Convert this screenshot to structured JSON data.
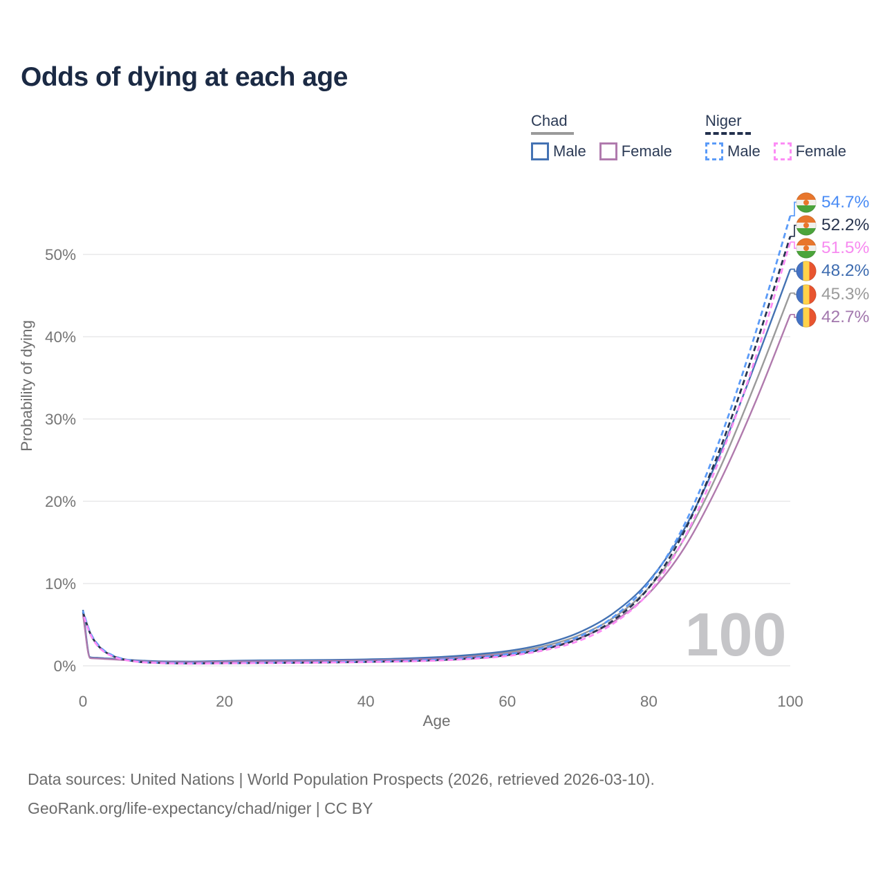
{
  "title": "Odds of dying at each age",
  "watermark": "100",
  "legend": {
    "groups": [
      {
        "name": "Chad",
        "underline_style": "solid",
        "underline_color": "#9a9a9a",
        "items": [
          {
            "label": "Male",
            "color": "#4472b3",
            "line_style": "solid"
          },
          {
            "label": "Female",
            "color": "#b07aad",
            "line_style": "solid"
          }
        ]
      },
      {
        "name": "Niger",
        "underline_style": "dashed",
        "underline_color": "#22304d",
        "items": [
          {
            "label": "Male",
            "color": "#5b9bf8",
            "line_style": "dashed"
          },
          {
            "label": "Female",
            "color": "#fc8df5",
            "line_style": "dashed"
          }
        ]
      }
    ]
  },
  "chart_data": {
    "type": "line",
    "title": "Odds of dying at each age",
    "xlabel": "Age",
    "ylabel": "Probability of dying",
    "xlim": [
      0,
      100
    ],
    "ylim_pct": [
      0,
      57
    ],
    "x_ticks": [
      0,
      20,
      40,
      60,
      80,
      100
    ],
    "x_tick_labels": [
      "0",
      "20",
      "40",
      "60",
      "80",
      "100"
    ],
    "y_ticks_pct": [
      0,
      10,
      20,
      30,
      40,
      50
    ],
    "y_tick_labels": [
      "0%",
      "10%",
      "20%",
      "30%",
      "40%",
      "50%"
    ],
    "grid": "horizontal",
    "hover_age_indicator": "100",
    "ages": [
      0,
      1,
      2,
      3,
      4,
      5,
      8,
      10,
      15,
      20,
      25,
      30,
      35,
      40,
      45,
      50,
      55,
      60,
      65,
      70,
      75,
      80,
      85,
      90,
      95,
      100
    ],
    "series": [
      {
        "id": "chad_both",
        "country": "Chad",
        "sex": "Both sexes",
        "style": "solid",
        "color": "#9a9a9a",
        "values_pct": [
          6.5,
          1.0,
          0.93,
          0.88,
          0.83,
          0.78,
          0.61,
          0.53,
          0.48,
          0.55,
          0.61,
          0.63,
          0.66,
          0.71,
          0.8,
          0.95,
          1.22,
          1.63,
          2.35,
          3.65,
          5.85,
          9.5,
          15.4,
          23.9,
          34.2,
          45.3
        ],
        "end_value_pct": 45.3,
        "end_label": "45.3%",
        "label_color": "#9a9a9a",
        "flag": "chad"
      },
      {
        "id": "chad_male",
        "country": "Chad",
        "sex": "Male",
        "style": "solid",
        "color": "#4472b3",
        "values_pct": [
          6.8,
          1.05,
          0.98,
          0.92,
          0.87,
          0.82,
          0.65,
          0.57,
          0.52,
          0.6,
          0.66,
          0.69,
          0.72,
          0.78,
          0.88,
          1.05,
          1.35,
          1.8,
          2.6,
          4.0,
          6.4,
          10.3,
          16.6,
          25.6,
          36.6,
          48.2
        ],
        "end_value_pct": 48.2,
        "end_label": "48.2%",
        "label_color": "#3e6cb0",
        "flag": "chad"
      },
      {
        "id": "chad_female",
        "country": "Chad",
        "sex": "Female",
        "style": "solid",
        "color": "#b07aad",
        "values_pct": [
          6.2,
          0.95,
          0.89,
          0.84,
          0.79,
          0.74,
          0.57,
          0.49,
          0.44,
          0.5,
          0.55,
          0.57,
          0.6,
          0.65,
          0.73,
          0.86,
          1.1,
          1.47,
          2.1,
          3.3,
          5.35,
          8.8,
          14.3,
          22.3,
          31.9,
          42.7
        ],
        "end_value_pct": 42.7,
        "end_label": "42.7%",
        "label_color": "#a277ad",
        "flag": "chad"
      },
      {
        "id": "niger_both",
        "country": "Niger",
        "sex": "Both sexes",
        "style": "dashed",
        "color": "#28344e",
        "values_pct": [
          6.5,
          4.0,
          2.6,
          1.78,
          1.28,
          0.95,
          0.48,
          0.38,
          0.29,
          0.32,
          0.35,
          0.38,
          0.42,
          0.48,
          0.56,
          0.69,
          0.91,
          1.3,
          2.0,
          3.25,
          5.55,
          9.5,
          16.3,
          26.2,
          38.6,
          52.2
        ],
        "end_value_pct": 52.2,
        "end_label": "52.2%",
        "label_color": "#28344e",
        "flag": "niger"
      },
      {
        "id": "niger_male",
        "country": "Niger",
        "sex": "Male",
        "style": "dashed",
        "color": "#5b9bf8",
        "values_pct": [
          6.65,
          4.1,
          2.7,
          1.85,
          1.35,
          1.0,
          0.5,
          0.4,
          0.31,
          0.34,
          0.37,
          0.41,
          0.45,
          0.51,
          0.6,
          0.74,
          0.98,
          1.4,
          2.15,
          3.5,
          5.95,
          10.1,
          17.1,
          27.4,
          40.2,
          54.7
        ],
        "end_value_pct": 54.7,
        "end_label": "54.7%",
        "label_color": "#4a8cf5",
        "flag": "niger"
      },
      {
        "id": "niger_female",
        "country": "Niger",
        "sex": "Female",
        "style": "dashed",
        "color": "#fc8df5",
        "values_pct": [
          6.35,
          3.9,
          2.5,
          1.7,
          1.22,
          0.9,
          0.46,
          0.36,
          0.27,
          0.3,
          0.33,
          0.36,
          0.4,
          0.45,
          0.52,
          0.64,
          0.85,
          1.2,
          1.85,
          3.0,
          5.15,
          8.9,
          15.5,
          25.1,
          37.2,
          51.5
        ],
        "end_value_pct": 51.5,
        "end_label": "51.5%",
        "label_color": "#f78af0",
        "flag": "niger"
      }
    ]
  },
  "footer": {
    "line1": "Data sources: United Nations | World Population Prospects (2026, retrieved 2026-03-10).",
    "line2": "GeoRank.org/life-expectancy/chad/niger | CC BY"
  }
}
